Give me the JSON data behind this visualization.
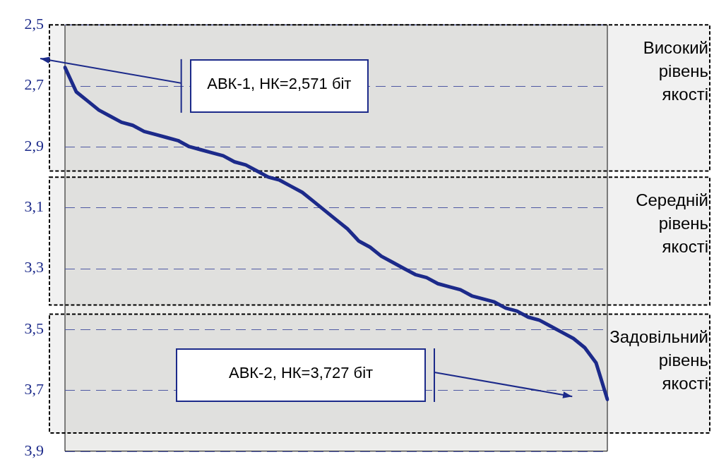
{
  "chart_data": {
    "type": "line",
    "categories": [
      null,
      null,
      null,
      null,
      null,
      null,
      null,
      null,
      null,
      null,
      null,
      null,
      null,
      null,
      null,
      null,
      null,
      null,
      null,
      null,
      null,
      null,
      null,
      null,
      null,
      null,
      null,
      null,
      null,
      null,
      null,
      null,
      null,
      null,
      null,
      null,
      null,
      null,
      null,
      null,
      null,
      null,
      null,
      null,
      null,
      null,
      null,
      null,
      null
    ],
    "series": [
      {
        "color": "#1c2a8a",
        "values": [
          2.64,
          2.72,
          2.75,
          2.78,
          2.8,
          2.82,
          2.83,
          2.85,
          2.86,
          2.87,
          2.88,
          2.9,
          2.91,
          2.92,
          2.93,
          2.95,
          2.96,
          2.98,
          3.0,
          3.01,
          3.03,
          3.05,
          3.08,
          3.11,
          3.14,
          3.17,
          3.21,
          3.23,
          3.26,
          3.28,
          3.3,
          3.32,
          3.33,
          3.35,
          3.36,
          3.37,
          3.39,
          3.4,
          3.41,
          3.43,
          3.44,
          3.46,
          3.47,
          3.49,
          3.51,
          3.53,
          3.56,
          3.61,
          3.73
        ]
      }
    ],
    "ylim": [
      3.9,
      2.5
    ],
    "yticks": [
      {
        "value": 2.5,
        "label": "2,5"
      },
      {
        "value": 2.7,
        "label": "2,7"
      },
      {
        "value": 2.9,
        "label": "2,9"
      },
      {
        "value": 3.1,
        "label": "3,1"
      },
      {
        "value": 3.3,
        "label": "3,3"
      },
      {
        "value": 3.5,
        "label": "3,5"
      },
      {
        "value": 3.7,
        "label": "3,7"
      },
      {
        "value": 3.9,
        "label": "3,9"
      }
    ],
    "tick_labels": "y",
    "grid": "y",
    "marker": "none",
    "line_style": "solid",
    "legend": false,
    "bands": [
      {
        "axis": "y",
        "from": 2.5,
        "to": 2.98,
        "label": "Високий рівень якості"
      },
      {
        "axis": "y",
        "from": 3.0,
        "to": 3.42,
        "label": "Середній рівень якості"
      },
      {
        "axis": "y",
        "from": 3.45,
        "to": 3.84,
        "label": "Задовільний рівень якості"
      }
    ],
    "annotations": [
      "АВК-1, НК=2,571 біт",
      "АВК-2, НК=3,727 біт"
    ]
  }
}
